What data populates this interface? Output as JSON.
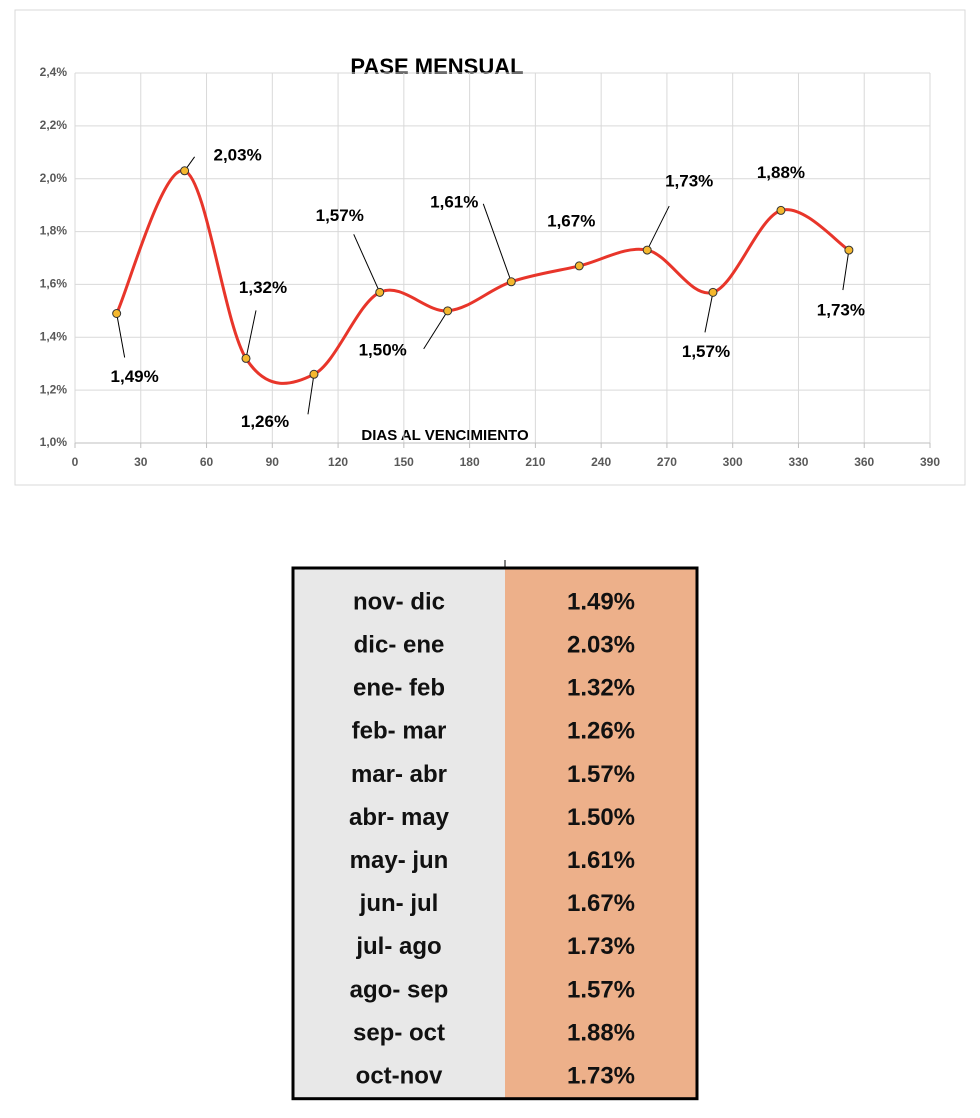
{
  "chart_data": {
    "type": "line",
    "title": "PASE MENSUAL",
    "x_label": "DIAS AL VENCIMIENTO",
    "x": [
      19,
      50,
      78,
      109,
      139,
      170,
      199,
      230,
      261,
      291,
      322,
      353
    ],
    "series": [
      {
        "color": "#e8352a",
        "marker_color": "#f5b82e",
        "values": [
          1.49,
          2.03,
          1.32,
          1.26,
          1.57,
          1.5,
          1.61,
          1.67,
          1.73,
          1.57,
          1.88,
          1.73
        ],
        "value_labels": [
          "1,49%",
          "2,03%",
          "1,32%",
          "1,26%",
          "1,57%",
          "1,50%",
          "1,61%",
          "1,67%",
          "1,73%",
          "1,57%",
          "1,88%",
          "1,73%"
        ]
      }
    ],
    "xlim": [
      0,
      390
    ],
    "xticks": [
      0,
      30,
      60,
      90,
      120,
      150,
      180,
      210,
      240,
      270,
      300,
      330,
      360,
      390
    ],
    "ylim": [
      1.0,
      2.4
    ],
    "yticks": [
      {
        "value": 1.0,
        "label": "1,0%"
      },
      {
        "value": 1.2,
        "label": "1,2%"
      },
      {
        "value": 1.4,
        "label": "1,4%"
      },
      {
        "value": 1.6,
        "label": "1,6%"
      },
      {
        "value": 1.8,
        "label": "1,8%"
      },
      {
        "value": 2.0,
        "label": "2,0%"
      },
      {
        "value": 2.2,
        "label": "2,2%"
      },
      {
        "value": 2.4,
        "label": "2,4%"
      }
    ],
    "grid": true
  },
  "table": {
    "rows": [
      [
        "nov- dic",
        "1.49%"
      ],
      [
        "dic- ene",
        "2.03%"
      ],
      [
        "ene- feb",
        "1.32%"
      ],
      [
        "feb- mar",
        "1.26%"
      ],
      [
        "mar- abr",
        "1.57%"
      ],
      [
        "abr- may",
        "1.50%"
      ],
      [
        "may- jun",
        "1.61%"
      ],
      [
        "jun- jul",
        "1.67%"
      ],
      [
        "jul- ago",
        "1.73%"
      ],
      [
        "ago- sep",
        "1.57%"
      ],
      [
        "sep- oct",
        "1.88%"
      ],
      [
        "oct-nov",
        "1.73%"
      ]
    ]
  }
}
